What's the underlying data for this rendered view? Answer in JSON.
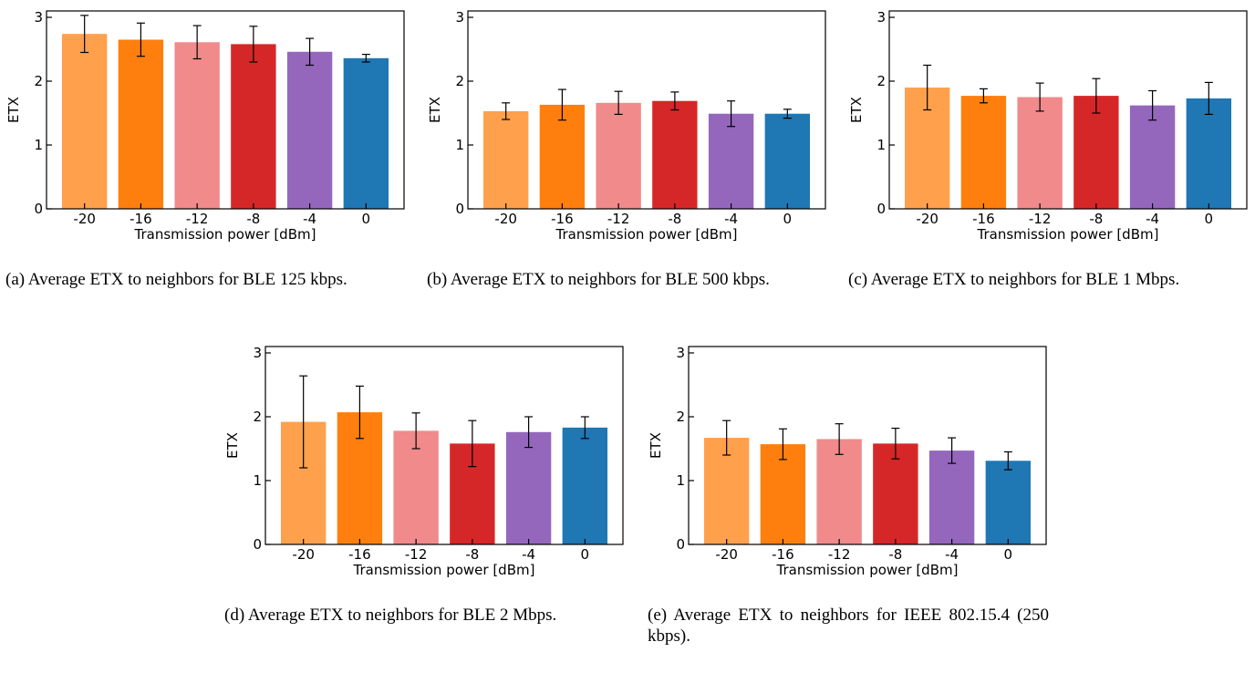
{
  "chart_data": [
    {
      "type": "bar",
      "caption": "(a) Average ETX to neighbors for BLE 125 kbps.",
      "categories": [
        "-20",
        "-16",
        "-12",
        "-8",
        "-4",
        "0"
      ],
      "values": [
        2.74,
        2.65,
        2.61,
        2.58,
        2.46,
        2.36
      ],
      "errors": [
        0.29,
        0.26,
        0.26,
        0.28,
        0.21,
        0.06
      ],
      "xlabel": "Transmission power [dBm]",
      "ylabel": "ETX",
      "ylim": [
        0,
        3.1
      ],
      "yticks": [
        "0",
        "1",
        "2",
        "3"
      ],
      "grid": false,
      "colors": [
        "#ffa04d",
        "#ff7f0e",
        "#f08a8b",
        "#d62728",
        "#9467bd",
        "#1f77b4"
      ]
    },
    {
      "type": "bar",
      "caption": "(b) Average ETX to neighbors for BLE 500 kbps.",
      "categories": [
        "-20",
        "-16",
        "-12",
        "-8",
        "-4",
        "0"
      ],
      "values": [
        1.53,
        1.63,
        1.66,
        1.69,
        1.49,
        1.49
      ],
      "errors": [
        0.13,
        0.24,
        0.18,
        0.14,
        0.2,
        0.07
      ],
      "xlabel": "Transmission power [dBm]",
      "ylabel": "ETX",
      "ylim": [
        0,
        3.1
      ],
      "yticks": [
        "0",
        "1",
        "2",
        "3"
      ],
      "grid": false,
      "colors": [
        "#ffa04d",
        "#ff7f0e",
        "#f08a8b",
        "#d62728",
        "#9467bd",
        "#1f77b4"
      ]
    },
    {
      "type": "bar",
      "caption": "(c) Average ETX to neighbors for BLE 1 Mbps.",
      "categories": [
        "-20",
        "-16",
        "-12",
        "-8",
        "-4",
        "0"
      ],
      "values": [
        1.9,
        1.77,
        1.75,
        1.77,
        1.62,
        1.73
      ],
      "errors": [
        0.35,
        0.11,
        0.22,
        0.27,
        0.23,
        0.25
      ],
      "xlabel": "Transmission power [dBm]",
      "ylabel": "ETX",
      "ylim": [
        0,
        3.1
      ],
      "yticks": [
        "0",
        "1",
        "2",
        "3"
      ],
      "grid": false,
      "colors": [
        "#ffa04d",
        "#ff7f0e",
        "#f08a8b",
        "#d62728",
        "#9467bd",
        "#1f77b4"
      ]
    },
    {
      "type": "bar",
      "caption": "(d) Average ETX to neighbors for BLE 2 Mbps.",
      "categories": [
        "-20",
        "-16",
        "-12",
        "-8",
        "-4",
        "0"
      ],
      "values": [
        1.92,
        2.07,
        1.78,
        1.58,
        1.76,
        1.83
      ],
      "errors": [
        0.72,
        0.41,
        0.28,
        0.36,
        0.24,
        0.17
      ],
      "xlabel": "Transmission power [dBm]",
      "ylabel": "ETX",
      "ylim": [
        0,
        3.1
      ],
      "yticks": [
        "0",
        "1",
        "2",
        "3"
      ],
      "grid": false,
      "colors": [
        "#ffa04d",
        "#ff7f0e",
        "#f08a8b",
        "#d62728",
        "#9467bd",
        "#1f77b4"
      ]
    },
    {
      "type": "bar",
      "caption": "(e) Average ETX to neighbors for IEEE 802.15.4 (250 kbps).",
      "categories": [
        "-20",
        "-16",
        "-12",
        "-8",
        "-4",
        "0"
      ],
      "values": [
        1.67,
        1.57,
        1.65,
        1.58,
        1.47,
        1.31
      ],
      "errors": [
        0.27,
        0.24,
        0.24,
        0.24,
        0.2,
        0.14
      ],
      "xlabel": "Transmission power [dBm]",
      "ylabel": "ETX",
      "ylim": [
        0,
        3.1
      ],
      "yticks": [
        "0",
        "1",
        "2",
        "3"
      ],
      "grid": false,
      "colors": [
        "#ffa04d",
        "#ff7f0e",
        "#f08a8b",
        "#d62728",
        "#9467bd",
        "#1f77b4"
      ]
    }
  ]
}
